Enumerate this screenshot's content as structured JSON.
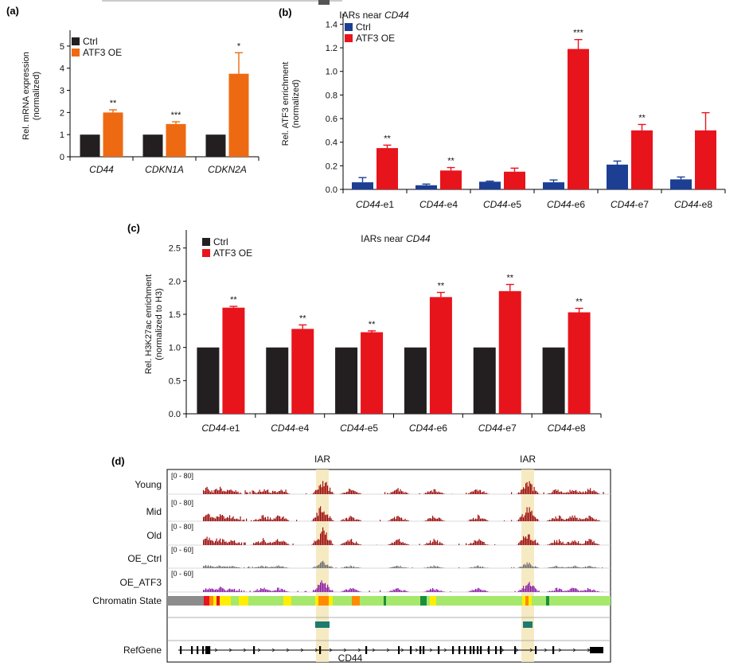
{
  "chart_data": [
    {
      "panel": "(a)",
      "type": "bar",
      "title": "",
      "ylabel": [
        "Rel. mRNA expression",
        "(normalized)"
      ],
      "ylim": [
        0,
        5.5
      ],
      "yticks": [
        "0",
        "1",
        "2",
        "3",
        "4",
        "5"
      ],
      "categories": [
        "CD44",
        "CDKN1A",
        "CDKN2A"
      ],
      "series": [
        {
          "name": "Ctrl",
          "color": "#231f20",
          "values": [
            1.0,
            1.0,
            1.0
          ],
          "errors": [
            0,
            0,
            0
          ],
          "sig": [
            "",
            "",
            ""
          ]
        },
        {
          "name": "ATF3 OE",
          "color": "#ee6a12",
          "values": [
            2.0,
            1.48,
            3.75
          ],
          "errors": [
            0.12,
            0.1,
            0.95
          ],
          "sig": [
            "**",
            "***",
            "*"
          ]
        }
      ],
      "legend": "top-left"
    },
    {
      "panel": "(b)",
      "type": "bar",
      "title_prefix": "IARs near ",
      "title_gene": "CD44",
      "ylabel": [
        "Rel. ATF3 enrichment",
        "(normalized)"
      ],
      "ylim": [
        0,
        1.45
      ],
      "yticks": [
        "0.0",
        "0.2",
        "0.4",
        "0.6",
        "0.8",
        "1.0",
        "1.2",
        "1.4"
      ],
      "categories": [
        {
          "gene": "CD44",
          "suffix": "-e1"
        },
        {
          "gene": "CD44",
          "suffix": "-e4"
        },
        {
          "gene": "CD44",
          "suffix": "-e5"
        },
        {
          "gene": "CD44",
          "suffix": "-e6"
        },
        {
          "gene": "CD44",
          "suffix": "-e7"
        },
        {
          "gene": "CD44",
          "suffix": "-e8"
        }
      ],
      "series": [
        {
          "name": "Ctrl",
          "color": "#1c3f94",
          "values": [
            0.06,
            0.035,
            0.065,
            0.06,
            0.21,
            0.085
          ],
          "errors": [
            0.04,
            0.01,
            0.005,
            0.02,
            0.03,
            0.02
          ],
          "sig": [
            "",
            "",
            "",
            "",
            "",
            ""
          ]
        },
        {
          "name": "ATF3 OE",
          "color": "#e8141c",
          "values": [
            0.35,
            0.16,
            0.15,
            1.19,
            0.5,
            0.5
          ],
          "errors": [
            0.025,
            0.025,
            0.03,
            0.08,
            0.05,
            0.15
          ],
          "sig": [
            "**",
            "**",
            "",
            "***",
            "**",
            ""
          ]
        }
      ],
      "legend": "top-left"
    },
    {
      "panel": "(c)",
      "type": "bar",
      "title_prefix": "IARs near ",
      "title_gene": "CD44",
      "ylabel": [
        "Rel. H3K27ac enrichment",
        "(normalized to H3)"
      ],
      "ylim": [
        0,
        2.7
      ],
      "yticks": [
        "0.0",
        "0.5",
        "1.0",
        "1.5",
        "2.0",
        "2.5"
      ],
      "categories": [
        {
          "gene": "CD44",
          "suffix": "-e1"
        },
        {
          "gene": "CD44",
          "suffix": "-e4"
        },
        {
          "gene": "CD44",
          "suffix": "-e5"
        },
        {
          "gene": "CD44",
          "suffix": "-e6"
        },
        {
          "gene": "CD44",
          "suffix": "-e7"
        },
        {
          "gene": "CD44",
          "suffix": "-e8"
        }
      ],
      "series": [
        {
          "name": "Ctrl",
          "color": "#231f20",
          "values": [
            1.0,
            1.0,
            1.0,
            1.0,
            1.0,
            1.0
          ],
          "errors": [
            0,
            0,
            0,
            0,
            0,
            0
          ],
          "sig": [
            "",
            "",
            "",
            "",
            "",
            ""
          ]
        },
        {
          "name": "ATF3 OE",
          "color": "#e8141c",
          "values": [
            1.6,
            1.28,
            1.23,
            1.76,
            1.85,
            1.53
          ],
          "errors": [
            0.02,
            0.06,
            0.02,
            0.07,
            0.1,
            0.06
          ],
          "sig": [
            "**",
            "**",
            "**",
            "**",
            "**",
            "**"
          ]
        }
      ],
      "legend": "top-left"
    }
  ],
  "genome_browser": {
    "panel": "(d)",
    "iar_label": "IAR",
    "tracks": [
      {
        "name": "Young",
        "range": "[0 - 80]",
        "color": "#9e1010",
        "seed": 11,
        "scale": 1.0
      },
      {
        "name": "Mid",
        "range": "[0 - 80]",
        "color": "#9e1010",
        "seed": 23,
        "scale": 1.05
      },
      {
        "name": "Old",
        "range": "[0 - 80]",
        "color": "#9e1010",
        "seed": 37,
        "scale": 1.1
      },
      {
        "name": "OE_Ctrl",
        "range": "[0 - 60]",
        "color": "#707070",
        "seed": 41,
        "scale": 0.45
      },
      {
        "name": "OE_ATF3",
        "range": "[0 - 60]",
        "color": "#8b1fa8",
        "seed": 53,
        "scale": 0.75
      }
    ],
    "chromatin_label": "Chromatin State",
    "chromatin_colors": {
      "inactive": "#8c8c8c",
      "active_tss": "#e8141c",
      "flanking": "#ff8c00",
      "enhancer": "#ffee00",
      "transcribed": "#a5e86c",
      "transcribed_strong": "#1a8f3a"
    },
    "refgene_label": "RefGene",
    "gene_name": "CD44",
    "iar_box_color": "#1d7a6e",
    "highlight_color": "#f5e6b8"
  }
}
